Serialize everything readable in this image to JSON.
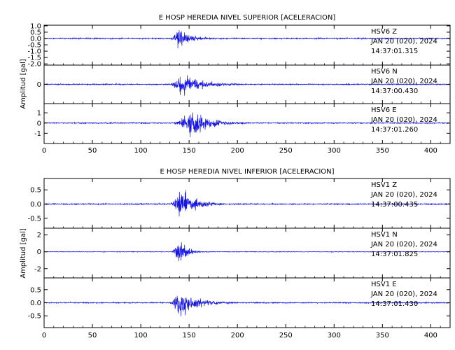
{
  "chart_data": [
    {
      "type": "line",
      "title": "E HOSP HEREDIA NIVEL SUPERIOR [ACELERACION]",
      "ylabel": "Amplitud [gal]",
      "xlabel": "",
      "xlim": [
        0,
        420
      ],
      "xticks": [
        0,
        50,
        100,
        150,
        200,
        250,
        300,
        350,
        400
      ],
      "line_color": "#1414e6",
      "series": [
        {
          "station": "HSV6",
          "component": "Z",
          "date": "JAN 20 (020), 2024",
          "time": "14:37:01.315",
          "ylim": [
            -2.1,
            1.05
          ],
          "yticks": [
            "1.0",
            "0.5",
            "0.0",
            "-0.5",
            "-1.0",
            "-1.5",
            "-2.0"
          ],
          "ytick_values": [
            1.0,
            0.5,
            0.0,
            -0.5,
            -1.0,
            -1.5,
            -2.0
          ],
          "waveform": {
            "noise": 0.07,
            "start_s": 128,
            "peak_s": 139,
            "peak": 1.0,
            "decay_s": 14
          }
        },
        {
          "station": "HSV6",
          "component": "N",
          "date": "JAN 20 (020), 2024",
          "time": "14:37:00.430",
          "ylim": [
            -3.0,
            3.0
          ],
          "yticks": [
            "0"
          ],
          "ytick_values": [
            0
          ],
          "waveform": {
            "noise": 0.12,
            "start_s": 128,
            "peak_s": 140,
            "peak": 2.6,
            "decay_s": 22
          }
        },
        {
          "station": "HSV6",
          "component": "E",
          "date": "JAN 20 (020), 2024",
          "time": "14:37:01.260",
          "ylim": [
            -2.0,
            1.9
          ],
          "yticks": [
            "1",
            "0",
            "-1"
          ],
          "ytick_values": [
            1,
            0,
            -1
          ],
          "waveform": {
            "noise": 0.07,
            "start_s": 128,
            "peak_s": 152,
            "peak": 1.7,
            "decay_s": 20
          }
        }
      ]
    },
    {
      "type": "line",
      "title": "E HOSP HEREDIA NIVEL INFERIOR [ACELERACION]",
      "ylabel": "Amplitud [gal]",
      "xlabel": "",
      "xlim": [
        0,
        420
      ],
      "xticks": [
        0,
        50,
        100,
        150,
        200,
        250,
        300,
        350,
        400
      ],
      "line_color": "#1414e6",
      "series": [
        {
          "station": "HSV1",
          "component": "Z",
          "date": "JAN 20 (020), 2024",
          "time": "14:37:00.435",
          "ylim": [
            -0.85,
            0.9
          ],
          "yticks": [
            "0.5",
            "0.0",
            "-0.5"
          ],
          "ytick_values": [
            0.5,
            0.0,
            -0.5
          ],
          "waveform": {
            "noise": 0.03,
            "start_s": 128,
            "peak_s": 140,
            "peak": 0.8,
            "decay_s": 16
          }
        },
        {
          "station": "HSV1",
          "component": "N",
          "date": "JAN 20 (020), 2024",
          "time": "14:37:01.825",
          "ylim": [
            -3.1,
            2.8
          ],
          "yticks": [
            "2",
            "0",
            "-2"
          ],
          "ytick_values": [
            2,
            0,
            -2
          ],
          "waveform": {
            "noise": 0.05,
            "start_s": 130,
            "peak_s": 139,
            "peak": 2.5,
            "decay_s": 8
          }
        },
        {
          "station": "HSV1",
          "component": "E",
          "date": "JAN 20 (020), 2024",
          "time": "14:37:01.430",
          "ylim": [
            -0.95,
            0.95
          ],
          "yticks": [
            "0.5",
            "0.0",
            "-0.5"
          ],
          "ytick_values": [
            0.5,
            0.0,
            -0.5
          ],
          "waveform": {
            "noise": 0.03,
            "start_s": 128,
            "peak_s": 139,
            "peak": 0.9,
            "decay_s": 18
          }
        }
      ]
    }
  ]
}
